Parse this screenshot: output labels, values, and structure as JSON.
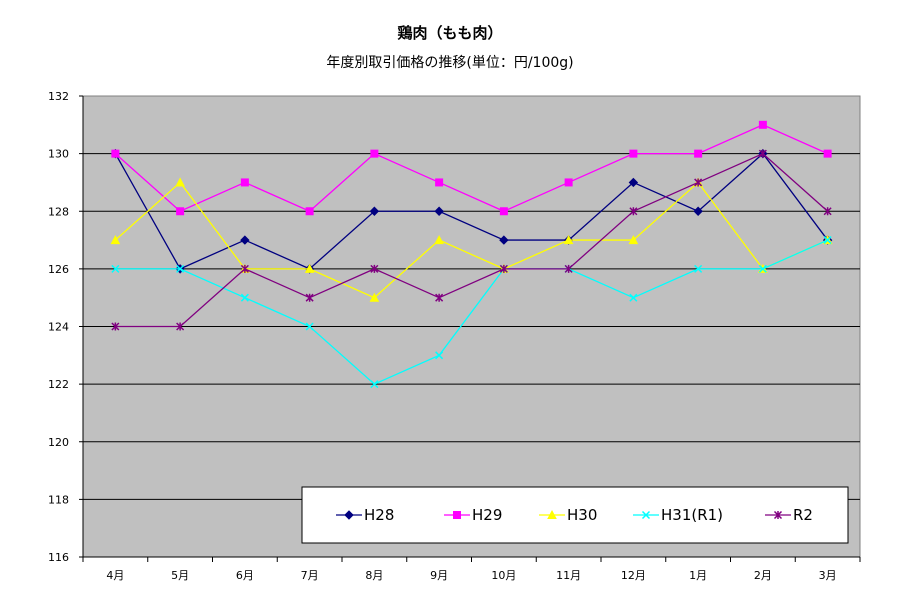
{
  "chart_data": {
    "type": "line",
    "title": "鶏肉（もも肉）",
    "subtitle": "年度別取引価格の推移(単位：円/100g)",
    "categories": [
      "4月",
      "5月",
      "6月",
      "7月",
      "8月",
      "9月",
      "10月",
      "11月",
      "12月",
      "1月",
      "2月",
      "3月"
    ],
    "ylim": [
      116,
      132
    ],
    "yticks": [
      "116",
      "118",
      "120",
      "122",
      "124",
      "126",
      "128",
      "130",
      "132"
    ],
    "grid": true,
    "plot_background": "#c0c0c0",
    "legend_position": "bottom-right",
    "series": [
      {
        "name": "H28",
        "color": "#000080",
        "marker": "diamond",
        "values": [
          130,
          126,
          127,
          126,
          128,
          128,
          127,
          127,
          129,
          128,
          130,
          127
        ]
      },
      {
        "name": "H29",
        "color": "#ff00ff",
        "marker": "square",
        "values": [
          130,
          128,
          129,
          128,
          130,
          129,
          128,
          129,
          130,
          130,
          131,
          130
        ]
      },
      {
        "name": "H30",
        "color": "#ffff00",
        "marker": "triangle",
        "values": [
          127,
          129,
          126,
          126,
          125,
          127,
          126,
          127,
          127,
          129,
          126,
          127
        ]
      },
      {
        "name": "H31(R1)",
        "color": "#00ffff",
        "marker": "x",
        "values": [
          126,
          126,
          125,
          124,
          122,
          123,
          126,
          126,
          125,
          126,
          126,
          127
        ]
      },
      {
        "name": "R2",
        "color": "#800080",
        "marker": "star",
        "values": [
          124,
          124,
          126,
          125,
          126,
          125,
          126,
          126,
          128,
          129,
          130,
          128
        ]
      }
    ]
  }
}
